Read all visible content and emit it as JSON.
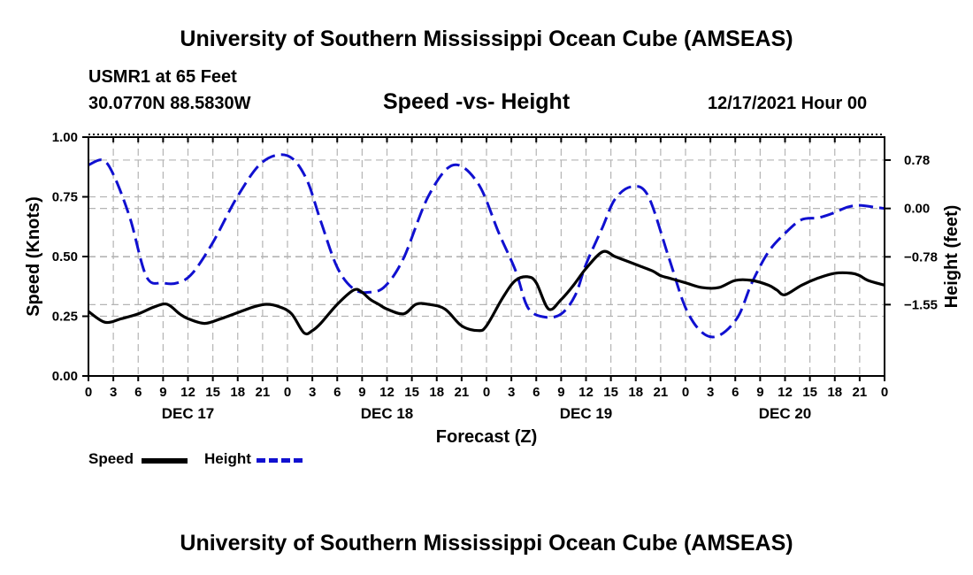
{
  "header": {
    "title": "University of Southern Mississippi Ocean Cube (AMSEAS)",
    "station": "USMR1 at 65 Feet",
    "coords": "30.0770N  88.5830W",
    "date": "12/17/2021 Hour 00"
  },
  "footer": {
    "title": "University of Southern Mississippi Ocean Cube (AMSEAS)"
  },
  "chart_data": {
    "type": "line",
    "title": "Speed -vs- Height",
    "xlabel": "Forecast (Z)",
    "ylabel": "Speed (Knots)",
    "y2label": "Height (feet)",
    "xlim": [
      0,
      96
    ],
    "ylim": [
      0,
      1.0
    ],
    "y2lim": [
      -2.7,
      1.15
    ],
    "x_tick_labels": [
      "0",
      "3",
      "6",
      "9",
      "12",
      "15",
      "18",
      "21",
      "0",
      "3",
      "6",
      "9",
      "12",
      "15",
      "18",
      "21",
      "0",
      "3",
      "6",
      "9",
      "12",
      "15",
      "18",
      "21",
      "0",
      "3",
      "6",
      "9",
      "12",
      "15",
      "18",
      "21",
      "0"
    ],
    "y_ticks": [
      {
        "value": 0.0,
        "label": "0.00"
      },
      {
        "value": 0.25,
        "label": "0.25"
      },
      {
        "value": 0.5,
        "label": "0.50"
      },
      {
        "value": 0.75,
        "label": "0.75"
      },
      {
        "value": 1.0,
        "label": "1.00"
      }
    ],
    "y2_ticks": [
      {
        "value": 0.78,
        "label": "0.78"
      },
      {
        "value": 0.0,
        "label": "0.00"
      },
      {
        "value": -0.78,
        "label": "−0.78"
      },
      {
        "value": -1.55,
        "label": "−1.55"
      }
    ],
    "day_labels": [
      {
        "x": 12,
        "label": "DEC 17"
      },
      {
        "x": 36,
        "label": "DEC 18"
      },
      {
        "x": 60,
        "label": "DEC 19"
      },
      {
        "x": 84,
        "label": "DEC 20"
      }
    ],
    "legend": [
      "Speed",
      "Height"
    ],
    "series": [
      {
        "name": "Speed",
        "axis": "left",
        "style": "solid",
        "color": "#000000",
        "x": [
          0,
          2,
          4,
          6,
          8,
          9.5,
          11,
          12,
          14,
          16,
          18,
          20,
          21.5,
          23,
          24.5,
          26,
          27,
          28,
          30,
          32,
          33,
          34,
          35,
          36,
          38,
          39.5,
          41,
          43,
          45,
          47,
          48,
          50,
          51.5,
          53,
          54,
          55.5,
          57,
          58.5,
          60,
          62,
          63.5,
          65,
          66.5,
          68,
          69,
          70,
          72,
          74,
          76,
          78,
          80,
          82,
          83,
          84,
          86,
          88,
          90,
          92,
          93,
          94,
          96
        ],
        "y": [
          0.27,
          0.225,
          0.24,
          0.26,
          0.29,
          0.3,
          0.26,
          0.24,
          0.22,
          0.24,
          0.265,
          0.29,
          0.3,
          0.29,
          0.26,
          0.18,
          0.19,
          0.22,
          0.3,
          0.36,
          0.35,
          0.32,
          0.3,
          0.28,
          0.26,
          0.3,
          0.3,
          0.28,
          0.21,
          0.19,
          0.21,
          0.33,
          0.4,
          0.415,
          0.39,
          0.28,
          0.32,
          0.38,
          0.45,
          0.52,
          0.5,
          0.48,
          0.46,
          0.44,
          0.42,
          0.41,
          0.39,
          0.37,
          0.37,
          0.4,
          0.4,
          0.38,
          0.36,
          0.34,
          0.38,
          0.41,
          0.43,
          0.43,
          0.42,
          0.4,
          0.38
        ]
      },
      {
        "name": "Height",
        "axis": "right",
        "style": "dashed",
        "color": "#1010d0",
        "x": [
          0,
          1.7,
          3,
          5,
          7,
          9,
          10.7,
          12.5,
          15,
          18,
          21,
          24,
          26.2,
          28,
          30,
          32,
          34,
          35.8,
          38,
          41,
          44,
          47,
          49.5,
          51.5,
          53,
          55,
          57,
          58.7,
          60,
          62,
          63.5,
          65.5,
          67.5,
          70,
          72,
          74,
          76,
          78.3,
          80,
          82,
          84,
          86,
          88,
          89.7,
          91.5,
          93,
          94.8,
          96
        ],
        "y": [
          0.7,
          0.78,
          0.55,
          -0.15,
          -1.1,
          -1.2,
          -1.2,
          -1.05,
          -0.55,
          0.2,
          0.75,
          0.85,
          0.5,
          -0.2,
          -0.95,
          -1.3,
          -1.35,
          -1.25,
          -0.8,
          0.2,
          0.7,
          0.4,
          -0.4,
          -1.0,
          -1.6,
          -1.75,
          -1.7,
          -1.4,
          -0.9,
          -0.3,
          0.15,
          0.35,
          0.2,
          -0.8,
          -1.6,
          -2.0,
          -2.05,
          -1.75,
          -1.2,
          -0.7,
          -0.4,
          -0.18,
          -0.15,
          -0.08,
          0.02,
          0.05,
          0.02,
          0.0
        ]
      }
    ]
  }
}
